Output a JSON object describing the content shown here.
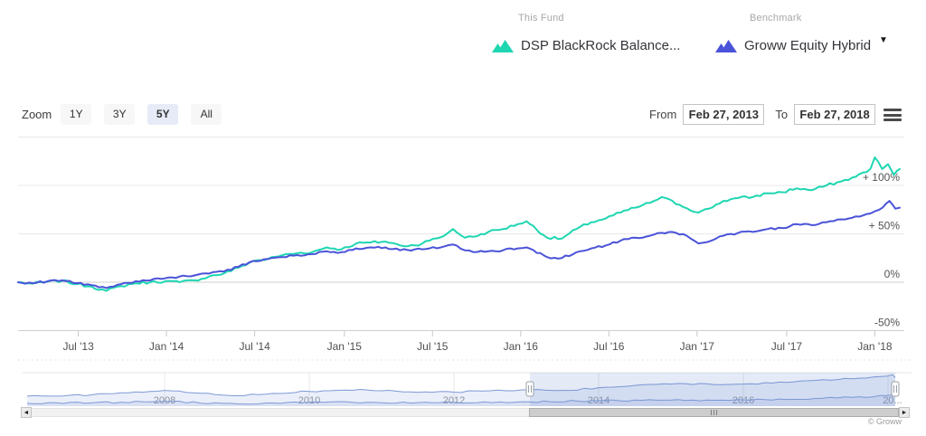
{
  "legend": {
    "this_fund": {
      "label": "This Fund",
      "name": "DSP BlackRock Balance...",
      "color": "#1fd6b2"
    },
    "benchmark": {
      "label": "Benchmark",
      "name": "Groww Equity Hybrid",
      "color": "#4b53d8",
      "caret": "▼"
    }
  },
  "toolbar": {
    "zoom_label": "Zoom",
    "zoom_options": [
      {
        "label": "1Y",
        "selected": false
      },
      {
        "label": "3Y",
        "selected": false
      },
      {
        "label": "5Y",
        "selected": true
      },
      {
        "label": "All",
        "selected": false
      }
    ],
    "from_label": "From",
    "from_value": "Feb 27, 2013",
    "to_label": "To",
    "to_value": "Feb 27, 2018"
  },
  "chart_data": {
    "type": "line",
    "x_axis": {
      "start": "Feb 27, 2013",
      "end": "Feb 27, 2018",
      "unit": "months_from_start",
      "ticks": [
        {
          "t": 4.1,
          "label": "Jul '13"
        },
        {
          "t": 10.1,
          "label": "Jan '14"
        },
        {
          "t": 16.1,
          "label": "Jul '14"
        },
        {
          "t": 22.2,
          "label": "Jan '15"
        },
        {
          "t": 28.2,
          "label": "Jul '15"
        },
        {
          "t": 34.2,
          "label": "Jan '16"
        },
        {
          "t": 40.2,
          "label": "Jul '16"
        },
        {
          "t": 46.2,
          "label": "Jan '17"
        },
        {
          "t": 52.3,
          "label": "Jul '17"
        },
        {
          "t": 58.3,
          "label": "Jan '18"
        }
      ]
    },
    "y_axis": {
      "unit": "%",
      "range": [
        -50,
        150
      ],
      "gridlines": [
        {
          "value": 150,
          "label": ""
        },
        {
          "value": 100,
          "label": "+ 100%"
        },
        {
          "value": 50,
          "label": "+ 50%"
        },
        {
          "value": 0,
          "label": "0%",
          "emphasis": true
        },
        {
          "value": -50,
          "label": "-50%",
          "emphasis": true
        }
      ]
    },
    "series": [
      {
        "name": "DSP BlackRock Balance...",
        "color": "#1fd6b2",
        "points": [
          [
            0,
            0
          ],
          [
            1,
            -1.5
          ],
          [
            2,
            0.5
          ],
          [
            3,
            1.5
          ],
          [
            4,
            -2
          ],
          [
            5,
            -4.5
          ],
          [
            6,
            -9
          ],
          [
            7,
            -4
          ],
          [
            8,
            -1
          ],
          [
            9,
            0
          ],
          [
            10,
            1
          ],
          [
            11,
            0
          ],
          [
            12,
            2
          ],
          [
            13,
            6
          ],
          [
            14,
            9
          ],
          [
            15,
            15
          ],
          [
            16,
            22
          ],
          [
            17,
            24
          ],
          [
            18,
            28
          ],
          [
            19,
            30
          ],
          [
            20,
            31
          ],
          [
            21,
            36
          ],
          [
            22,
            34
          ],
          [
            23,
            40
          ],
          [
            24,
            41
          ],
          [
            25,
            42
          ],
          [
            26,
            38
          ],
          [
            27,
            38
          ],
          [
            28,
            43
          ],
          [
            29,
            48
          ],
          [
            29.6,
            55
          ],
          [
            30.4,
            46
          ],
          [
            31,
            47
          ],
          [
            32,
            52
          ],
          [
            33,
            55
          ],
          [
            34,
            60
          ],
          [
            34.6,
            63
          ],
          [
            36,
            46
          ],
          [
            37,
            45
          ],
          [
            38,
            55
          ],
          [
            39,
            62
          ],
          [
            40,
            66
          ],
          [
            41,
            72
          ],
          [
            42,
            77
          ],
          [
            43,
            82
          ],
          [
            43.8,
            88
          ],
          [
            45,
            80
          ],
          [
            46.3,
            72
          ],
          [
            47,
            76
          ],
          [
            48,
            84
          ],
          [
            49,
            87
          ],
          [
            50,
            88
          ],
          [
            51,
            92
          ],
          [
            52,
            93
          ],
          [
            53,
            97
          ],
          [
            54,
            95
          ],
          [
            55,
            100
          ],
          [
            56,
            104
          ],
          [
            57,
            109
          ],
          [
            58,
            117
          ],
          [
            58.3,
            129
          ],
          [
            58.8,
            117
          ],
          [
            59.2,
            122
          ],
          [
            59.6,
            111
          ],
          [
            60,
            117
          ]
        ]
      },
      {
        "name": "Groww Equity Hybrid",
        "color": "#4b53d8",
        "points": [
          [
            0,
            0
          ],
          [
            1,
            -1
          ],
          [
            2,
            1
          ],
          [
            3,
            2
          ],
          [
            4,
            -1
          ],
          [
            5,
            -3
          ],
          [
            6,
            -6
          ],
          [
            7,
            -2
          ],
          [
            8,
            1
          ],
          [
            9,
            2
          ],
          [
            10,
            4
          ],
          [
            11,
            6
          ],
          [
            12,
            7
          ],
          [
            13,
            9
          ],
          [
            14,
            11
          ],
          [
            15,
            16
          ],
          [
            16,
            22
          ],
          [
            17,
            24
          ],
          [
            18,
            26
          ],
          [
            19,
            28
          ],
          [
            20,
            29
          ],
          [
            21,
            32
          ],
          [
            22,
            31
          ],
          [
            23,
            35
          ],
          [
            24,
            36
          ],
          [
            25,
            36
          ],
          [
            26,
            33
          ],
          [
            27,
            34
          ],
          [
            28,
            35
          ],
          [
            29,
            37
          ],
          [
            29.6,
            39
          ],
          [
            30.4,
            33
          ],
          [
            31,
            31
          ],
          [
            32,
            32
          ],
          [
            33,
            33
          ],
          [
            34,
            35
          ],
          [
            34.6,
            36
          ],
          [
            36,
            26
          ],
          [
            37,
            25
          ],
          [
            38,
            31
          ],
          [
            39,
            35
          ],
          [
            40,
            38
          ],
          [
            41,
            43
          ],
          [
            42,
            46
          ],
          [
            43,
            48
          ],
          [
            43.8,
            51
          ],
          [
            44.5,
            52
          ],
          [
            45.5,
            48
          ],
          [
            46.3,
            40
          ],
          [
            47,
            42
          ],
          [
            48,
            48
          ],
          [
            49,
            51
          ],
          [
            50,
            52
          ],
          [
            51,
            55
          ],
          [
            52,
            56
          ],
          [
            53,
            60
          ],
          [
            54,
            59
          ],
          [
            55,
            62
          ],
          [
            56,
            65
          ],
          [
            57,
            68
          ],
          [
            58,
            71
          ],
          [
            58.6,
            75
          ],
          [
            59.3,
            84
          ],
          [
            59.7,
            76
          ],
          [
            60,
            77
          ]
        ]
      }
    ]
  },
  "navigator": {
    "range_full_years": [
      2006.1,
      2018.1
    ],
    "selection": {
      "from_year": 2013.05,
      "to_year": 2018.1
    },
    "years": [
      {
        "label": "2008",
        "year": 2008
      },
      {
        "label": "2010",
        "year": 2010
      },
      {
        "label": "2012",
        "year": 2012
      },
      {
        "label": "2014",
        "year": 2014
      },
      {
        "label": "2016",
        "year": 2016
      },
      {
        "label": "20...",
        "year": 2018,
        "dx": 5
      }
    ],
    "series": [
      {
        "name": "fund-history",
        "points": [
          [
            2006.1,
            0.3
          ],
          [
            2006.5,
            0.3
          ],
          [
            2007,
            0.34
          ],
          [
            2007.5,
            0.4
          ],
          [
            2008,
            0.47
          ],
          [
            2008.4,
            0.4
          ],
          [
            2008.8,
            0.33
          ],
          [
            2009,
            0.31
          ],
          [
            2009.5,
            0.38
          ],
          [
            2010,
            0.44
          ],
          [
            2010.7,
            0.5
          ],
          [
            2011,
            0.46
          ],
          [
            2011.5,
            0.41
          ],
          [
            2012,
            0.42
          ],
          [
            2012.5,
            0.46
          ],
          [
            2013.05,
            0.49
          ],
          [
            2013.6,
            0.47
          ],
          [
            2014,
            0.55
          ],
          [
            2014.5,
            0.62
          ],
          [
            2015,
            0.66
          ],
          [
            2015.5,
            0.67
          ],
          [
            2016,
            0.66
          ],
          [
            2016.5,
            0.72
          ],
          [
            2017,
            0.77
          ],
          [
            2017.5,
            0.82
          ],
          [
            2018,
            0.9
          ],
          [
            2018.06,
            0.94
          ],
          [
            2018.1,
            0.86
          ]
        ]
      },
      {
        "name": "benchmark-history",
        "points": [
          [
            2006.1,
            0.08
          ],
          [
            2007,
            0.1
          ],
          [
            2008,
            0.14
          ],
          [
            2009,
            0.07
          ],
          [
            2010,
            0.12
          ],
          [
            2011,
            0.1
          ],
          [
            2012,
            0.11
          ],
          [
            2013.05,
            0.13
          ],
          [
            2014,
            0.16
          ],
          [
            2015,
            0.18
          ],
          [
            2016,
            0.19
          ],
          [
            2017,
            0.23
          ],
          [
            2017.8,
            0.28
          ],
          [
            2018.06,
            0.33
          ],
          [
            2018.1,
            0.3
          ]
        ]
      }
    ],
    "line_color": "#7e99d6",
    "fill_color": "rgba(120,148,212,0.15)",
    "mask_color": "rgba(106,136,205,0.18)"
  },
  "scrollbar": {
    "left_arrow": "◄",
    "right_arrow": "►"
  },
  "copyright": "© Groww"
}
